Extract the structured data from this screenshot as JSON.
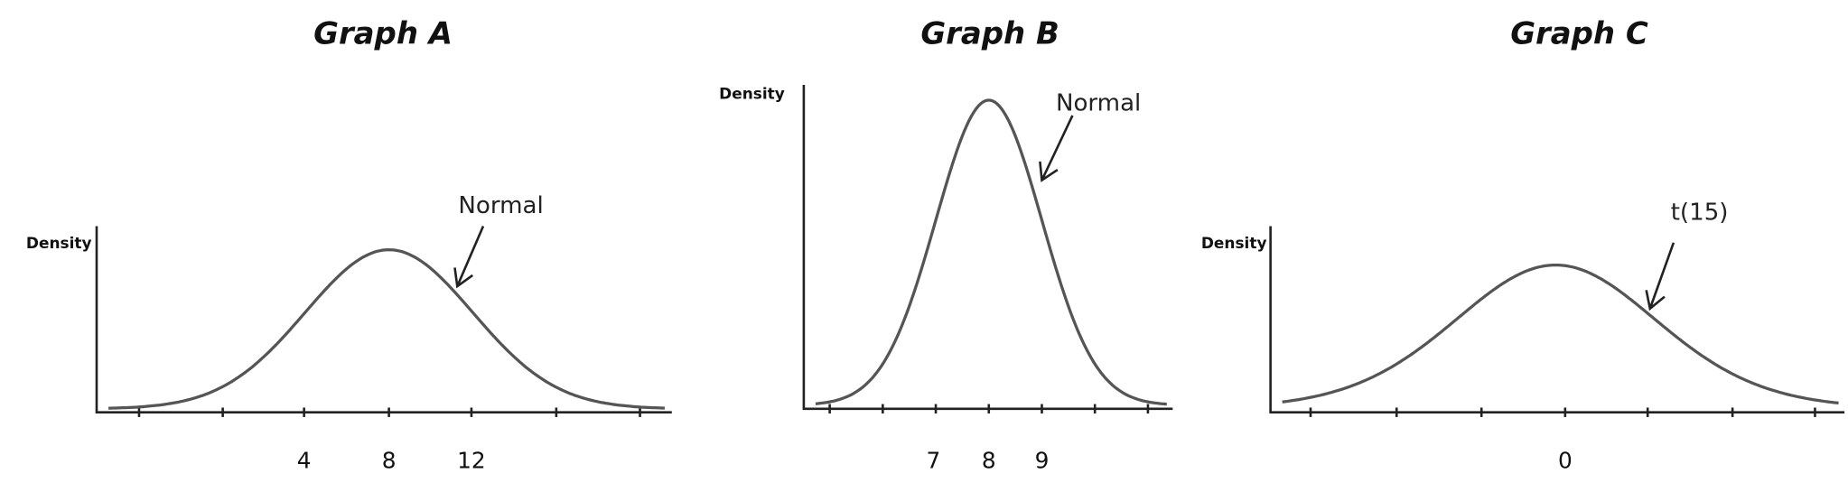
{
  "graphs": [
    {
      "title": "Graph A",
      "y_label": "Density",
      "annotation": "Normal",
      "tick_labels": [
        "4",
        "8",
        "12"
      ]
    },
    {
      "title": "Graph B",
      "y_label": "Density",
      "annotation": "Normal",
      "tick_labels": [
        "7",
        "8",
        "9"
      ]
    },
    {
      "title": "Graph C",
      "y_label": "Density",
      "annotation": "t(15)",
      "tick_labels": [
        "0"
      ]
    }
  ]
}
